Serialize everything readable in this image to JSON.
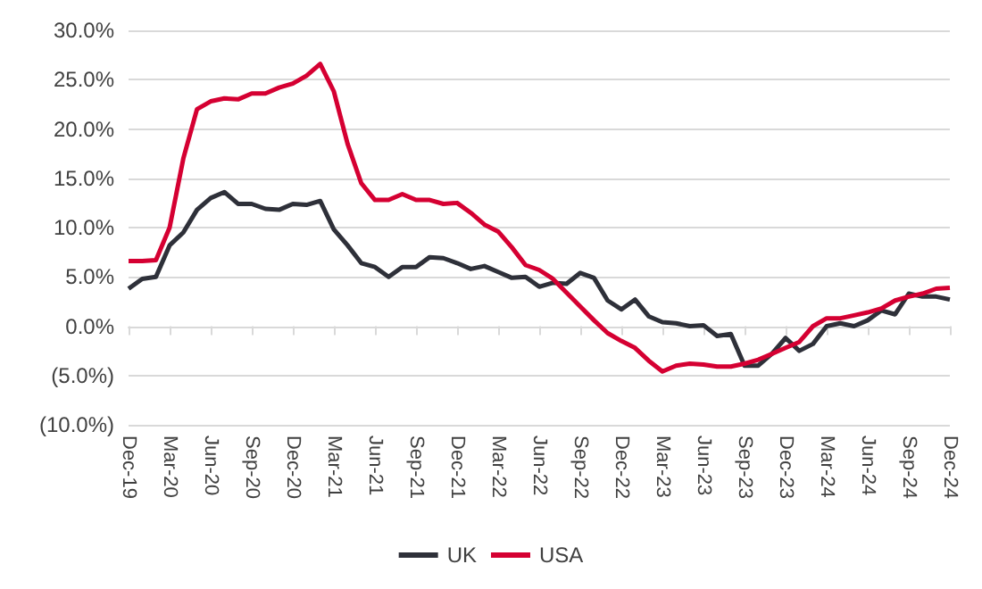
{
  "chart_data": {
    "type": "line",
    "categories": [
      "Dec-19",
      null,
      null,
      "Mar-20",
      null,
      null,
      "Jun-20",
      null,
      null,
      "Sep-20",
      null,
      null,
      "Dec-20",
      null,
      null,
      "Mar-21",
      null,
      null,
      "Jun-21",
      null,
      null,
      "Sep-21",
      null,
      null,
      "Dec-21",
      null,
      null,
      "Mar-22",
      null,
      null,
      "Jun-22",
      null,
      null,
      "Sep-22",
      null,
      null,
      "Dec-22",
      null,
      null,
      "Mar-23",
      null,
      null,
      "Jun-23",
      null,
      null,
      "Sep-23",
      null,
      null,
      "Dec-23",
      null,
      null,
      "Mar-24",
      null,
      null,
      "Jun-24",
      null,
      null,
      "Sep-24",
      null,
      null,
      "Dec-24"
    ],
    "series": [
      {
        "name": "UK",
        "color": "#2e3039",
        "values": [
          3.8,
          4.8,
          5.0,
          8.2,
          9.5,
          11.8,
          13.0,
          13.6,
          12.4,
          12.4,
          11.9,
          11.8,
          12.4,
          12.3,
          12.7,
          9.8,
          8.2,
          6.4,
          6.0,
          5.0,
          6.0,
          6.0,
          7.0,
          6.9,
          6.4,
          5.8,
          6.1,
          5.5,
          4.9,
          5.0,
          4.0,
          4.4,
          4.3,
          5.4,
          4.9,
          2.6,
          1.7,
          2.7,
          1.0,
          0.4,
          0.3,
          0.0,
          0.1,
          -1.0,
          -0.8,
          -4.0,
          -4.0,
          -2.8,
          -1.2,
          -2.5,
          -1.8,
          0.0,
          0.3,
          0.0,
          0.6,
          1.6,
          1.2,
          3.3,
          3.0,
          3.0,
          2.7
        ]
      },
      {
        "name": "USA",
        "color": "#d50032",
        "values": [
          6.6,
          6.6,
          6.7,
          10.0,
          17.0,
          22.0,
          22.8,
          23.1,
          23.0,
          23.6,
          23.6,
          24.2,
          24.6,
          25.4,
          26.6,
          23.8,
          18.5,
          14.5,
          12.8,
          12.8,
          13.4,
          12.8,
          12.8,
          12.4,
          12.5,
          11.5,
          10.3,
          9.6,
          8.0,
          6.2,
          5.7,
          4.8,
          3.4,
          2.0,
          0.6,
          -0.7,
          -1.5,
          -2.2,
          -3.5,
          -4.6,
          -4.0,
          -3.8,
          -3.9,
          -4.1,
          -4.1,
          -3.8,
          -3.4,
          -2.8,
          -2.2,
          -1.6,
          0.0,
          0.8,
          0.8,
          1.1,
          1.4,
          1.8,
          2.6,
          3.0,
          3.3,
          3.8,
          3.9
        ]
      }
    ],
    "ylim": [
      -10,
      30
    ],
    "yticks": [
      {
        "value": -10,
        "label": "(10.0%)"
      },
      {
        "value": -5,
        "label": "(5.0%)"
      },
      {
        "value": 0,
        "label": "0.0%"
      },
      {
        "value": 5,
        "label": "5.0%"
      },
      {
        "value": 10,
        "label": "10.0%"
      },
      {
        "value": 15,
        "label": "15.0%"
      },
      {
        "value": 20,
        "label": "20.0%"
      },
      {
        "value": 25,
        "label": "25.0%"
      },
      {
        "value": 30,
        "label": "30.0%"
      }
    ],
    "grid": "y",
    "legend": "bottom",
    "marker": "none",
    "line_style": "solid"
  }
}
